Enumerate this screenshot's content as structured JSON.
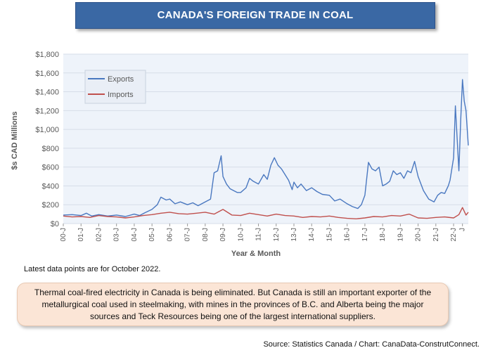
{
  "title": "CANADA'S FOREIGN TRADE IN COAL",
  "note": "Latest data points are for October 2022.",
  "summary": "Thermal coal-fired electricity in Canada is being eliminated. But Canada is still an important exporter of the metallurgical coal used in steelmaking, with mines in the provinces of B.C. and Alberta being the major sources and Teck Resources being one of the largest international suppliers.",
  "source": "Source: Statistics Canada / Chart: CanaData-ConstrutConnect.",
  "colors": {
    "exports": "#4a78c0",
    "imports": "#c0504d",
    "plot_bg": "#eef3fa",
    "banner": "#3a68a4"
  },
  "chart_data": {
    "type": "line",
    "ylabel": "$s CAD Millions",
    "xlabel": "Year & Month",
    "ylim": [
      0,
      1800
    ],
    "yticks": [
      "$0",
      "$200",
      "$400",
      "$600",
      "$800",
      "$1,000",
      "$1,200",
      "$1,400",
      "$1,600",
      "$1,800"
    ],
    "ytick_values": [
      0,
      200,
      400,
      600,
      800,
      1000,
      1200,
      1400,
      1600,
      1800
    ],
    "xlim": [
      2000.0,
      2022.83
    ],
    "xticks": [
      "00-J",
      "01-J",
      "02-J",
      "03-J",
      "04-J",
      "05-J",
      "06-J",
      "07-J",
      "08-J",
      "09-J",
      "10-J",
      "11-J",
      "12-J",
      "13-J",
      "14-J",
      "15-J",
      "16-J",
      "17-J",
      "18-J",
      "19-J",
      "20-J",
      "21-J",
      "22-J",
      "J"
    ],
    "xtick_values": [
      2000,
      2001,
      2002,
      2003,
      2004,
      2005,
      2006,
      2007,
      2008,
      2009,
      2010,
      2011,
      2012,
      2013,
      2014,
      2015,
      2016,
      2017,
      2018,
      2019,
      2020,
      2021,
      2022,
      2022.5
    ],
    "grid": true,
    "legend_position": "top-left",
    "series": [
      {
        "name": "Exports",
        "color": "#4a78c0",
        "x": [
          2000.0,
          2000.5,
          2001.0,
          2001.3,
          2001.6,
          2002.0,
          2002.5,
          2003.0,
          2003.5,
          2004.0,
          2004.3,
          2004.6,
          2005.0,
          2005.3,
          2005.5,
          2005.8,
          2006.0,
          2006.3,
          2006.6,
          2007.0,
          2007.3,
          2007.6,
          2008.0,
          2008.3,
          2008.5,
          2008.7,
          2008.9,
          2009.0,
          2009.2,
          2009.4,
          2009.6,
          2009.8,
          2010.0,
          2010.3,
          2010.5,
          2010.7,
          2011.0,
          2011.3,
          2011.5,
          2011.7,
          2011.9,
          2012.1,
          2012.3,
          2012.5,
          2012.7,
          2012.9,
          2013.0,
          2013.2,
          2013.4,
          2013.7,
          2014.0,
          2014.3,
          2014.6,
          2015.0,
          2015.3,
          2015.6,
          2016.0,
          2016.3,
          2016.6,
          2016.8,
          2017.0,
          2017.2,
          2017.4,
          2017.6,
          2017.8,
          2018.0,
          2018.2,
          2018.4,
          2018.6,
          2018.8,
          2019.0,
          2019.2,
          2019.4,
          2019.6,
          2019.8,
          2020.0,
          2020.3,
          2020.6,
          2020.9,
          2021.1,
          2021.3,
          2021.5,
          2021.7,
          2021.8,
          2022.0,
          2022.1,
          2022.3,
          2022.4,
          2022.5,
          2022.6,
          2022.7,
          2022.83
        ],
        "values": [
          90,
          95,
          85,
          110,
          80,
          95,
          80,
          90,
          75,
          100,
          85,
          115,
          150,
          200,
          280,
          250,
          260,
          210,
          230,
          200,
          220,
          190,
          230,
          260,
          540,
          560,
          720,
          500,
          420,
          370,
          350,
          330,
          330,
          380,
          480,
          450,
          420,
          520,
          470,
          620,
          700,
          620,
          580,
          520,
          460,
          360,
          440,
          380,
          420,
          350,
          380,
          340,
          310,
          300,
          240,
          260,
          210,
          180,
          160,
          200,
          300,
          650,
          580,
          560,
          600,
          400,
          420,
          450,
          560,
          520,
          540,
          480,
          560,
          540,
          660,
          500,
          350,
          260,
          230,
          300,
          330,
          320,
          400,
          460,
          700,
          1250,
          560,
          1100,
          1530,
          1300,
          1200,
          830
        ]
      },
      {
        "name": "Imports",
        "color": "#c0504d",
        "x": [
          2000.0,
          2000.5,
          2001.0,
          2001.5,
          2002.0,
          2002.5,
          2003.0,
          2003.5,
          2004.0,
          2004.5,
          2005.0,
          2005.5,
          2006.0,
          2006.5,
          2007.0,
          2007.5,
          2008.0,
          2008.5,
          2009.0,
          2009.5,
          2010.0,
          2010.5,
          2011.0,
          2011.5,
          2012.0,
          2012.5,
          2013.0,
          2013.5,
          2014.0,
          2014.5,
          2015.0,
          2015.5,
          2016.0,
          2016.5,
          2017.0,
          2017.5,
          2018.0,
          2018.5,
          2019.0,
          2019.5,
          2020.0,
          2020.5,
          2021.0,
          2021.5,
          2022.0,
          2022.3,
          2022.5,
          2022.7,
          2022.83
        ],
        "values": [
          80,
          70,
          75,
          65,
          85,
          75,
          70,
          60,
          70,
          85,
          95,
          110,
          120,
          105,
          100,
          110,
          120,
          100,
          150,
          90,
          85,
          110,
          95,
          80,
          100,
          85,
          80,
          65,
          75,
          70,
          80,
          65,
          55,
          50,
          60,
          75,
          70,
          85,
          80,
          100,
          60,
          55,
          65,
          70,
          60,
          95,
          170,
          90,
          120
        ]
      }
    ]
  }
}
